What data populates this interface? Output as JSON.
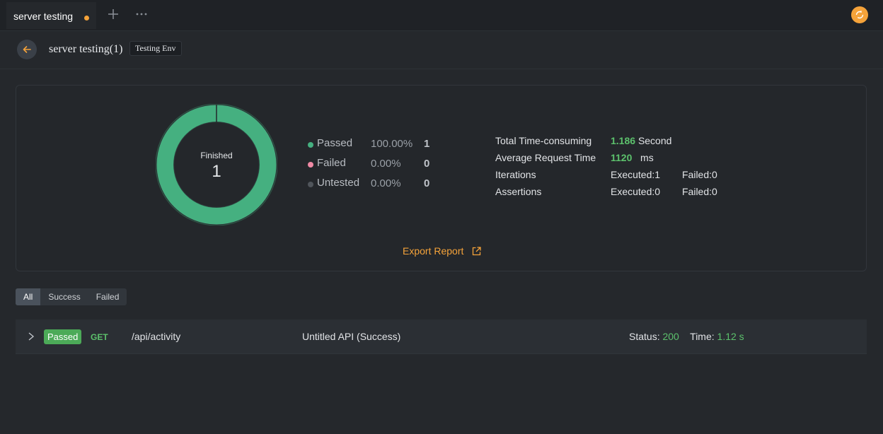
{
  "tabbar": {
    "tab_title": "server testing"
  },
  "header": {
    "title": "server testing(1)",
    "env": "Testing Env"
  },
  "summary": {
    "donut_label": "Finished",
    "donut_count": "1",
    "passed_fraction": 1.0,
    "legend": [
      {
        "label": "Passed",
        "pct": "100.00%",
        "count": "1",
        "color": "#45b080"
      },
      {
        "label": "Failed",
        "pct": "0.00%",
        "count": "0",
        "color": "#f08aa5"
      },
      {
        "label": "Untested",
        "pct": "0.00%",
        "count": "0",
        "color": "#50555b"
      }
    ],
    "stats": {
      "total_time_label": "Total Time-consuming",
      "total_time_value": "1.186",
      "total_time_unit": "Second",
      "avg_label": "Average Request Time",
      "avg_value": "1120",
      "avg_unit": "ms",
      "iterations_label": "Iterations",
      "iterations_executed": "Executed:1",
      "iterations_failed": "Failed:0",
      "assertions_label": "Assertions",
      "assertions_executed": "Executed:0",
      "assertions_failed": "Failed:0"
    },
    "export_label": "Export Report"
  },
  "filters": {
    "all": "All",
    "success": "Success",
    "failed": "Failed"
  },
  "results": [
    {
      "badge": "Passed",
      "method": "GET",
      "path": "/api/activity",
      "name": "Untitled API (Success)",
      "status_label": "Status:",
      "status_value": "200",
      "time_label": "Time:",
      "time_value": "1.12 s"
    }
  ],
  "colors": {
    "accent": "#f5a33a",
    "success": "#5cc16c",
    "donut": "#45b080"
  }
}
